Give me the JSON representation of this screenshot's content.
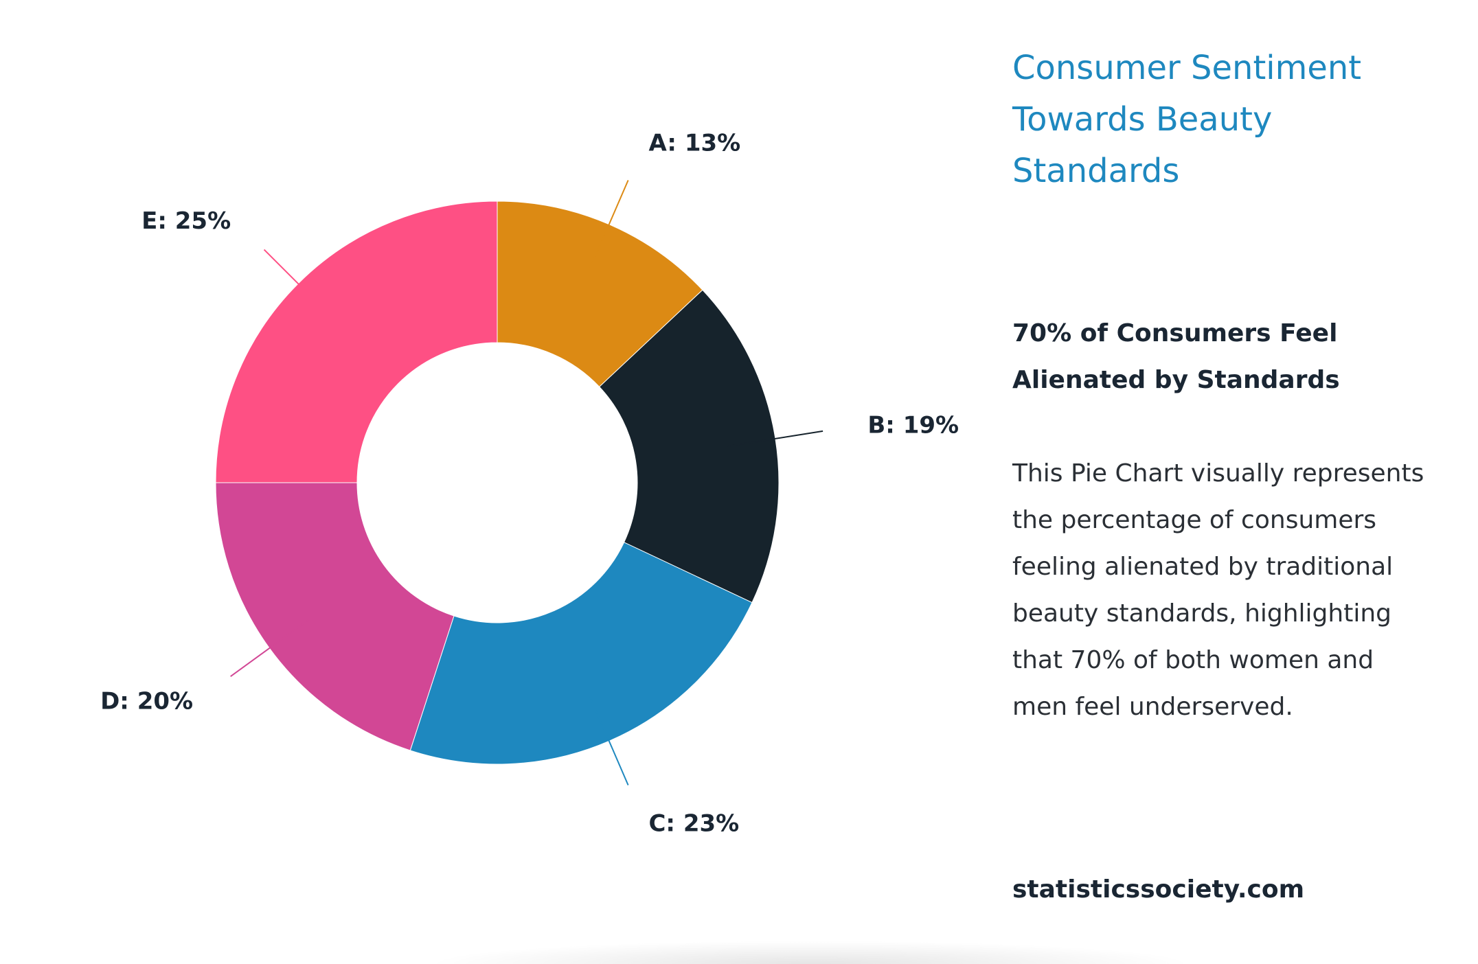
{
  "chart_data": {
    "type": "pie",
    "donut": true,
    "categories": [
      "A",
      "B",
      "C",
      "D",
      "E"
    ],
    "values": [
      13,
      19,
      23,
      20,
      25
    ],
    "unit": "%",
    "labels": [
      "A: 13%",
      "B: 19%",
      "C: 23%",
      "D: 20%",
      "E: 25%"
    ],
    "colors": [
      "#dc8a14",
      "#16232c",
      "#1e88bf",
      "#d24795",
      "#fe5084"
    ],
    "start_angle_deg": 0,
    "direction": "clockwise",
    "legend": "none"
  },
  "sidebar": {
    "title": "Consumer Sentiment Towards Beauty Standards",
    "subtitle": "70% of Consumers Feel Alienated by Standards",
    "description": "This Pie Chart visually represents the percentage of consumers feeling alienated by traditional beauty standards, highlighting that 70% of both women and men feel underserved.",
    "source": "statisticssociety.com"
  }
}
